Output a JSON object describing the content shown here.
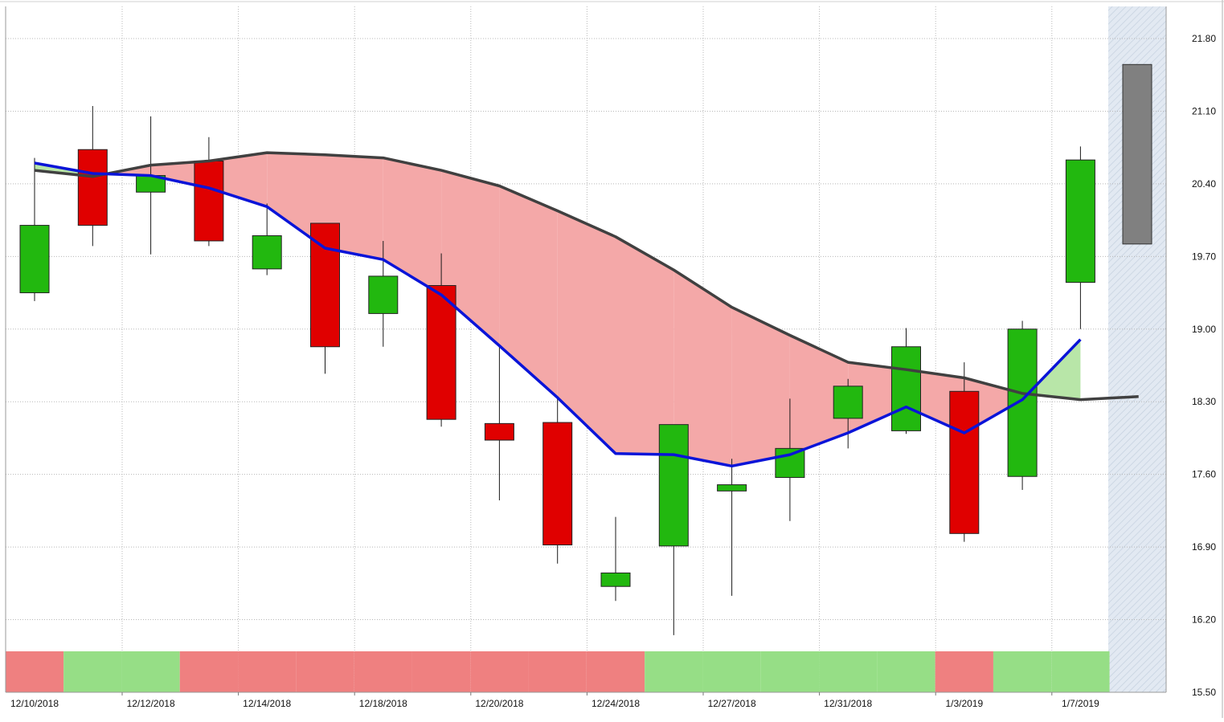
{
  "chart_data": {
    "type": "candlestick",
    "title": "",
    "xlabel": "",
    "ylabel": "",
    "ylim": [
      15.5,
      22.0
    ],
    "y_ticks": [
      15.5,
      16.2,
      16.9,
      17.6,
      18.3,
      19.0,
      19.7,
      20.4,
      21.1,
      21.8
    ],
    "y_tick_labels": [
      "15.50",
      "16.20",
      "16.90",
      "17.60",
      "18.30",
      "19.00",
      "19.70",
      "20.40",
      "21.10",
      "21.80"
    ],
    "x_tick_labels": [
      "12/10/2018",
      "12/12/2018",
      "12/14/2018",
      "12/18/2018",
      "12/20/2018",
      "12/24/2018",
      "12/27/2018",
      "12/31/2018",
      "1/3/2019",
      "1/7/2019"
    ],
    "grid": true,
    "colors": {
      "up": "#22b80f",
      "down": "#e00000",
      "fast_line": "#0a14d8",
      "slow_line": "#404040",
      "fill_bearish": "#f4a8a8",
      "fill_bullish": "#b8e6a8",
      "band_bearish": "#ef8080",
      "band_bullish": "#96de86",
      "projection": "#808080",
      "forecast_zone": "#dde6f0"
    },
    "candles": [
      {
        "open": 19.35,
        "high": 20.65,
        "low": 19.27,
        "close": 20.0,
        "direction": "up"
      },
      {
        "open": 20.73,
        "high": 21.15,
        "low": 19.8,
        "close": 20.0,
        "direction": "down"
      },
      {
        "open": 20.32,
        "high": 21.05,
        "low": 19.72,
        "close": 20.48,
        "direction": "up"
      },
      {
        "open": 20.62,
        "high": 20.85,
        "low": 19.8,
        "close": 19.85,
        "direction": "down"
      },
      {
        "open": 19.58,
        "high": 20.21,
        "low": 19.52,
        "close": 19.9,
        "direction": "up"
      },
      {
        "open": 20.02,
        "high": 20.02,
        "low": 18.57,
        "close": 18.83,
        "direction": "down"
      },
      {
        "open": 19.15,
        "high": 19.85,
        "low": 18.83,
        "close": 19.51,
        "direction": "up"
      },
      {
        "open": 19.42,
        "high": 19.73,
        "low": 18.06,
        "close": 18.13,
        "direction": "down"
      },
      {
        "open": 18.09,
        "high": 18.84,
        "low": 17.35,
        "close": 17.93,
        "direction": "down"
      },
      {
        "open": 18.1,
        "high": 18.35,
        "low": 16.74,
        "close": 16.92,
        "direction": "down"
      },
      {
        "open": 16.52,
        "high": 17.19,
        "low": 16.38,
        "close": 16.65,
        "direction": "up"
      },
      {
        "open": 16.91,
        "high": 18.08,
        "low": 16.05,
        "close": 18.08,
        "direction": "up"
      },
      {
        "open": 17.44,
        "high": 17.75,
        "low": 16.43,
        "close": 17.5,
        "direction": "up"
      },
      {
        "open": 17.57,
        "high": 18.33,
        "low": 17.15,
        "close": 17.85,
        "direction": "up"
      },
      {
        "open": 18.14,
        "high": 18.52,
        "low": 17.85,
        "close": 18.45,
        "direction": "up"
      },
      {
        "open": 18.02,
        "high": 19.01,
        "low": 17.99,
        "close": 18.83,
        "direction": "up"
      },
      {
        "open": 18.4,
        "high": 18.68,
        "low": 16.95,
        "close": 17.03,
        "direction": "down"
      },
      {
        "open": 17.58,
        "high": 19.08,
        "low": 17.45,
        "close": 19.0,
        "direction": "up"
      },
      {
        "open": 19.45,
        "high": 20.76,
        "low": 19.0,
        "close": 20.63,
        "direction": "up"
      }
    ],
    "series": [
      {
        "values": [
          20.6,
          20.5,
          20.48,
          20.36,
          20.18,
          19.78,
          19.67,
          19.33,
          18.84,
          18.34,
          17.8,
          17.79,
          17.68,
          17.79,
          18.0,
          18.25,
          18.0,
          18.32,
          18.9
        ]
      },
      {
        "values": [
          20.53,
          20.47,
          20.58,
          20.62,
          20.7,
          20.68,
          20.65,
          20.53,
          20.38,
          20.14,
          19.89,
          19.57,
          19.21,
          18.94,
          18.68,
          18.61,
          18.53,
          18.38,
          18.32,
          18.35
        ]
      }
    ],
    "signal_band": [
      "down",
      "up",
      "up",
      "down",
      "down",
      "down",
      "down",
      "down",
      "down",
      "down",
      "down",
      "up",
      "up",
      "up",
      "up",
      "up",
      "down",
      "up",
      "up"
    ],
    "projection": {
      "top": 21.55,
      "bottom": 19.82
    }
  }
}
